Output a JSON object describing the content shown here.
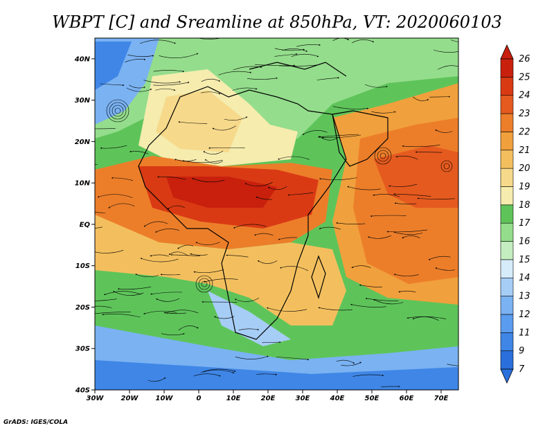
{
  "title": "WBPT [C] and Sreamline at 850hPa, VT: 2020060103",
  "credit": "GrADS: IGES/COLA",
  "map": {
    "lon_range": [
      -30,
      75
    ],
    "lat_range": [
      -40,
      45
    ],
    "lon_ticks": [
      {
        "value": -30,
        "label": "30W"
      },
      {
        "value": -20,
        "label": "20W"
      },
      {
        "value": -10,
        "label": "10W"
      },
      {
        "value": 0,
        "label": "0"
      },
      {
        "value": 10,
        "label": "10E"
      },
      {
        "value": 20,
        "label": "20E"
      },
      {
        "value": 30,
        "label": "30E"
      },
      {
        "value": 40,
        "label": "40E"
      },
      {
        "value": 50,
        "label": "50E"
      },
      {
        "value": 60,
        "label": "60E"
      },
      {
        "value": 70,
        "label": "70E"
      }
    ],
    "lat_ticks": [
      {
        "value": 40,
        "label": "40N"
      },
      {
        "value": 30,
        "label": "30N"
      },
      {
        "value": 20,
        "label": "20N"
      },
      {
        "value": 10,
        "label": "10N"
      },
      {
        "value": 0,
        "label": "EQ"
      },
      {
        "value": -10,
        "label": "10S"
      },
      {
        "value": -20,
        "label": "20S"
      },
      {
        "value": -30,
        "label": "30S"
      },
      {
        "value": -40,
        "label": "40S"
      }
    ]
  },
  "colorbar": {
    "levels": [
      "7",
      "9",
      "11",
      "12",
      "13",
      "14",
      "15",
      "16",
      "17",
      "18",
      "19",
      "20",
      "21",
      "22",
      "23",
      "24",
      "25",
      "26"
    ],
    "colors": [
      "#2a6fdc",
      "#3f86e6",
      "#5b9cee",
      "#7ab2f2",
      "#a6cdf6",
      "#d6ecfb",
      "#c4eec0",
      "#94dd8c",
      "#5ec45a",
      "#f5ecae",
      "#f6d98a",
      "#f3bf5e",
      "#f0a03c",
      "#ec7e2a",
      "#e55a1f",
      "#d93a14",
      "#c8200d"
    ],
    "low_color": "#2a6fdc",
    "high_color": "#c8200d"
  }
}
